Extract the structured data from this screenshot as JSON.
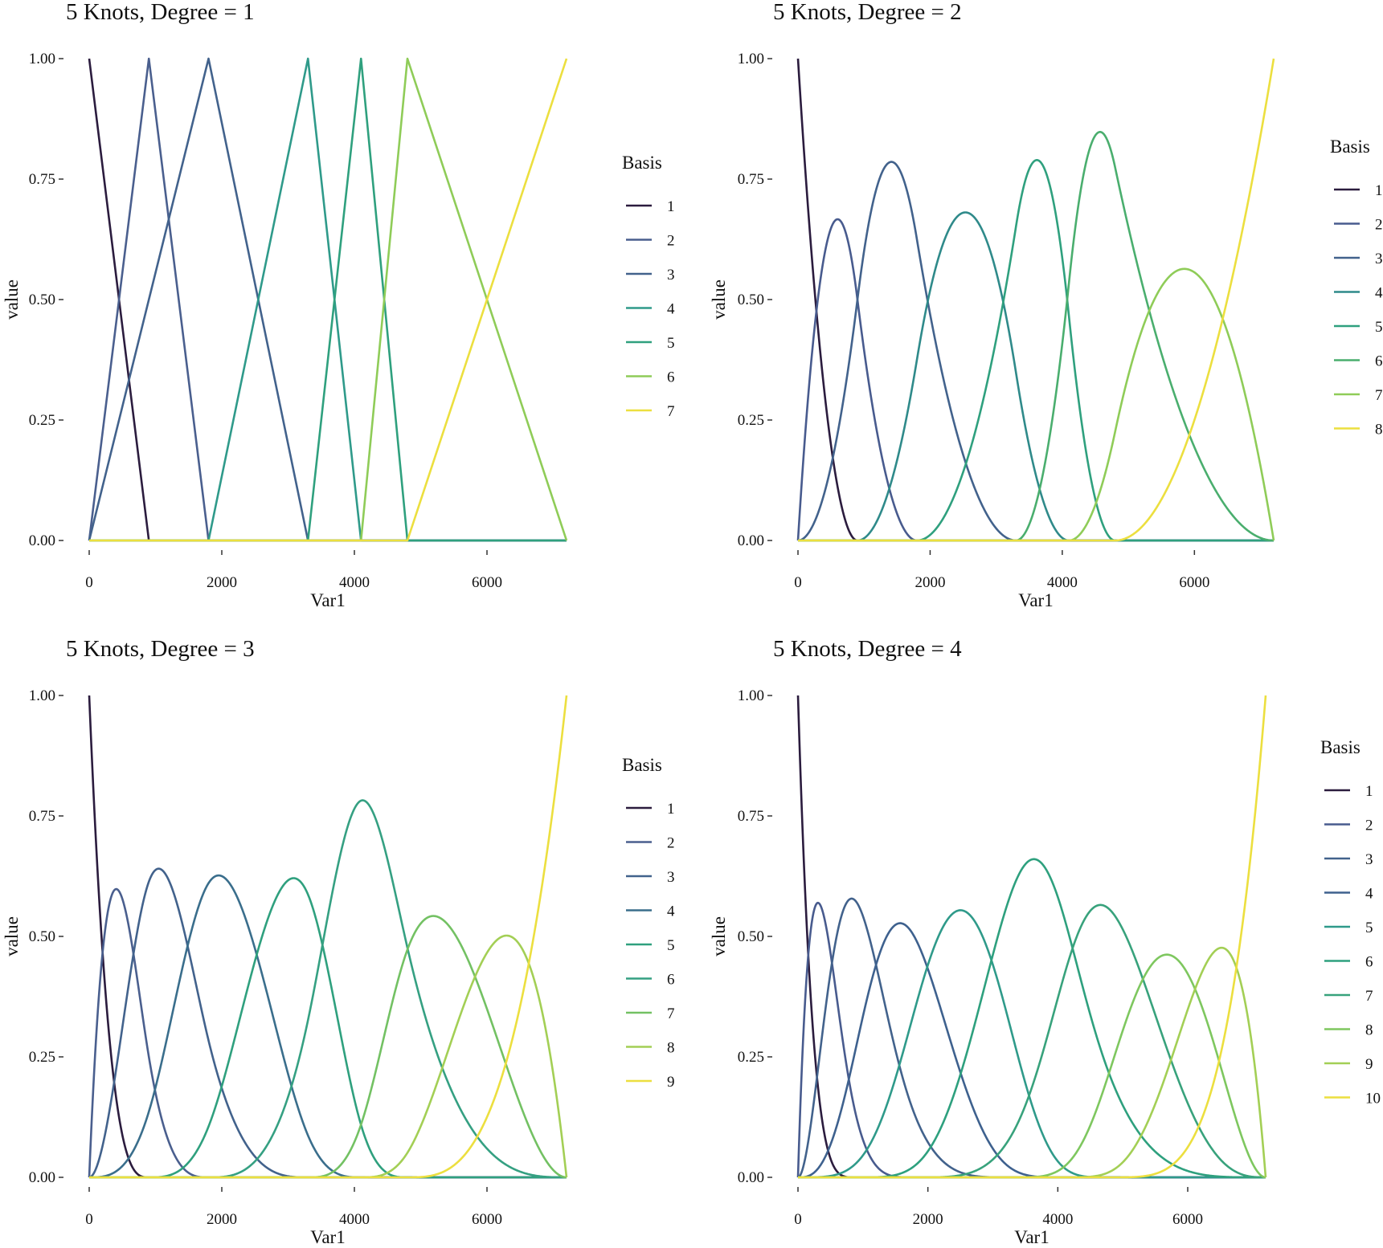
{
  "chart_data": [
    {
      "type": "line",
      "title": "5 Knots, Degree = 1",
      "degree": 1,
      "knots": [
        900,
        1800,
        3300,
        4100,
        4800
      ],
      "xlabel": "Var1",
      "ylabel": "value",
      "xlim": [
        0,
        7200
      ],
      "ylim": [
        0,
        1
      ],
      "x_ticks": [
        0,
        2000,
        4000,
        6000
      ],
      "y_ticks": [
        0,
        0.25,
        0.5,
        0.75,
        1
      ],
      "x_tick_labels": [
        "0",
        "2000",
        "4000",
        "6000"
      ],
      "y_tick_labels": [
        "0.00",
        "0.25",
        "0.50",
        "0.75",
        "1.00"
      ],
      "legend_title": "Basis",
      "legend_position": "right",
      "grid": false,
      "series": [
        {
          "name": "1",
          "color": "#2b1c3e",
          "x": [
            0,
            900,
            7200
          ],
          "y": [
            1,
            0,
            0
          ]
        },
        {
          "name": "2",
          "color": "#4a5f8e",
          "x": [
            0,
            900,
            1800,
            7200
          ],
          "y": [
            0,
            1,
            0,
            0
          ]
        },
        {
          "name": "3",
          "color": "#42628c",
          "x": [
            0,
            1800,
            3300,
            7200
          ],
          "y": [
            0,
            1,
            0,
            0
          ]
        },
        {
          "name": "4",
          "color": "#2f9a8a",
          "x": [
            0,
            1800,
            3300,
            4100,
            7200
          ],
          "y": [
            0,
            0,
            1,
            0,
            0
          ]
        },
        {
          "name": "5",
          "color": "#2fa07e",
          "x": [
            0,
            3300,
            4100,
            4800,
            7200
          ],
          "y": [
            0,
            0,
            1,
            0,
            0
          ]
        },
        {
          "name": "6",
          "color": "#8fcc58",
          "x": [
            0,
            4100,
            4800,
            7200
          ],
          "y": [
            0,
            0,
            1,
            0
          ]
        },
        {
          "name": "7",
          "color": "#ecdf3f",
          "x": [
            0,
            4800,
            7200
          ],
          "y": [
            0,
            0,
            1
          ]
        }
      ]
    },
    {
      "type": "line",
      "title": "5 Knots, Degree = 2",
      "degree": 2,
      "knots": [
        900,
        1800,
        3300,
        4100,
        4800
      ],
      "xlabel": "Var1",
      "ylabel": "value",
      "xlim": [
        0,
        7200
      ],
      "ylim": [
        0,
        1
      ],
      "x_ticks": [
        0,
        2000,
        4000,
        6000
      ],
      "y_ticks": [
        0,
        0.25,
        0.5,
        0.75,
        1
      ],
      "x_tick_labels": [
        "0",
        "2000",
        "4000",
        "6000"
      ],
      "y_tick_labels": [
        "0.00",
        "0.25",
        "0.50",
        "0.75",
        "1.00"
      ],
      "legend_title": "Basis",
      "legend_position": "right",
      "grid": false,
      "series": [
        {
          "name": "1",
          "color": "#2b1c3e",
          "peak_x": 0,
          "peak_y": 1.0
        },
        {
          "name": "2",
          "color": "#485b8e",
          "peak_x": 600,
          "peak_y": 0.66
        },
        {
          "name": "3",
          "color": "#42628c",
          "peak_x": 1400,
          "peak_y": 0.78
        },
        {
          "name": "4",
          "color": "#2f8a8a",
          "peak_x": 2550,
          "peak_y": 0.68
        },
        {
          "name": "5",
          "color": "#2fa07e",
          "peak_x": 3650,
          "peak_y": 0.79
        },
        {
          "name": "6",
          "color": "#4aae6e",
          "peak_x": 4550,
          "peak_y": 0.85
        },
        {
          "name": "7",
          "color": "#8fcc58",
          "peak_x": 5850,
          "peak_y": 0.56
        },
        {
          "name": "8",
          "color": "#ecdf3f",
          "peak_x": 7200,
          "peak_y": 1.0
        }
      ]
    },
    {
      "type": "line",
      "title": "5 Knots, Degree = 3",
      "degree": 3,
      "knots": [
        900,
        1800,
        3300,
        4100,
        4800
      ],
      "xlabel": "Var1",
      "ylabel": "value",
      "xlim": [
        0,
        7200
      ],
      "ylim": [
        0,
        1
      ],
      "x_ticks": [
        0,
        2000,
        4000,
        6000
      ],
      "y_ticks": [
        0,
        0.25,
        0.5,
        0.75,
        1
      ],
      "x_tick_labels": [
        "0",
        "2000",
        "4000",
        "6000"
      ],
      "y_tick_labels": [
        "0.00",
        "0.25",
        "0.50",
        "0.75",
        "1.00"
      ],
      "legend_title": "Basis",
      "legend_position": "right",
      "grid": false,
      "series": [
        {
          "name": "1",
          "color": "#2b1c3e",
          "peak_x": 0,
          "peak_y": 1.0
        },
        {
          "name": "2",
          "color": "#4a5f8e",
          "peak_x": 420,
          "peak_y": 0.6
        },
        {
          "name": "3",
          "color": "#42628c",
          "peak_x": 1050,
          "peak_y": 0.64
        },
        {
          "name": "4",
          "color": "#3a6e8c",
          "peak_x": 1950,
          "peak_y": 0.62
        },
        {
          "name": "5",
          "color": "#2fa07e",
          "peak_x": 3100,
          "peak_y": 0.62
        },
        {
          "name": "6",
          "color": "#35a082",
          "peak_x": 4150,
          "peak_y": 0.78
        },
        {
          "name": "7",
          "color": "#73c163",
          "peak_x": 5200,
          "peak_y": 0.54
        },
        {
          "name": "8",
          "color": "#a3cf55",
          "peak_x": 6300,
          "peak_y": 0.5
        },
        {
          "name": "9",
          "color": "#ecdf3f",
          "peak_x": 7200,
          "peak_y": 1.0
        }
      ]
    },
    {
      "type": "line",
      "title": "5 Knots, Degree = 4",
      "degree": 4,
      "knots": [
        900,
        1800,
        3300,
        4100,
        4800
      ],
      "xlabel": "Var1",
      "ylabel": "value",
      "xlim": [
        0,
        7200
      ],
      "ylim": [
        0,
        1
      ],
      "x_ticks": [
        0,
        2000,
        4000,
        6000
      ],
      "y_ticks": [
        0,
        0.25,
        0.5,
        0.75,
        1
      ],
      "x_tick_labels": [
        "0",
        "2000",
        "4000",
        "6000"
      ],
      "y_tick_labels": [
        "0.00",
        "0.25",
        "0.50",
        "0.75",
        "1.00"
      ],
      "legend_title": "Basis",
      "legend_position": "right",
      "grid": false,
      "series": [
        {
          "name": "1",
          "color": "#2b1c3e",
          "peak_x": 0,
          "peak_y": 1.0
        },
        {
          "name": "2",
          "color": "#485b8e",
          "peak_x": 300,
          "peak_y": 0.57
        },
        {
          "name": "3",
          "color": "#42628c",
          "peak_x": 850,
          "peak_y": 0.58
        },
        {
          "name": "4",
          "color": "#3e618e",
          "peak_x": 1600,
          "peak_y": 0.53
        },
        {
          "name": "5",
          "color": "#2f9a8a",
          "peak_x": 2500,
          "peak_y": 0.55
        },
        {
          "name": "6",
          "color": "#2ea07e",
          "peak_x": 3650,
          "peak_y": 0.66
        },
        {
          "name": "7",
          "color": "#38a27c",
          "peak_x": 4650,
          "peak_y": 0.56
        },
        {
          "name": "8",
          "color": "#7ec75f",
          "peak_x": 5700,
          "peak_y": 0.46
        },
        {
          "name": "9",
          "color": "#a3cf55",
          "peak_x": 6550,
          "peak_y": 0.47
        },
        {
          "name": "10",
          "color": "#ecdf3f",
          "peak_x": 7200,
          "peak_y": 1.0
        }
      ]
    }
  ]
}
